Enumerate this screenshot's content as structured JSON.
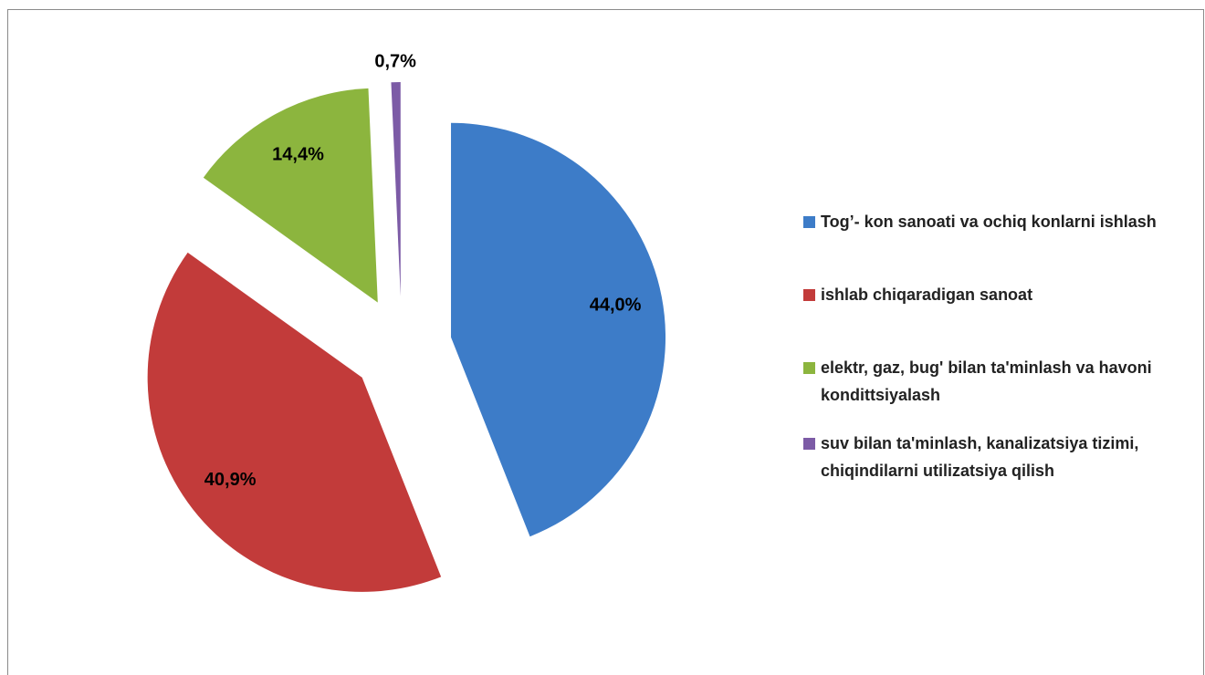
{
  "chart_data": {
    "type": "pie",
    "categories": [
      "Tog’- kon sanoati va ochiq konlarni ishlash",
      "ishlab chiqaradigan  sanoat",
      "elektr, gaz, bug'  bilan ta'minlash va havoni kondittsiyalash",
      "suv bilan ta'minlash, kanalizatsiya tizimi, chiqindilarni utilizatsiya qilish"
    ],
    "values": [
      44.0,
      40.9,
      14.4,
      0.7
    ],
    "value_labels": [
      "44,0%",
      "40,9%",
      "14,4%",
      "0,7%"
    ],
    "colors": [
      "#3d7cc8",
      "#c23b3a",
      "#8cb53e",
      "#7c5ba6"
    ],
    "legend": "right"
  }
}
